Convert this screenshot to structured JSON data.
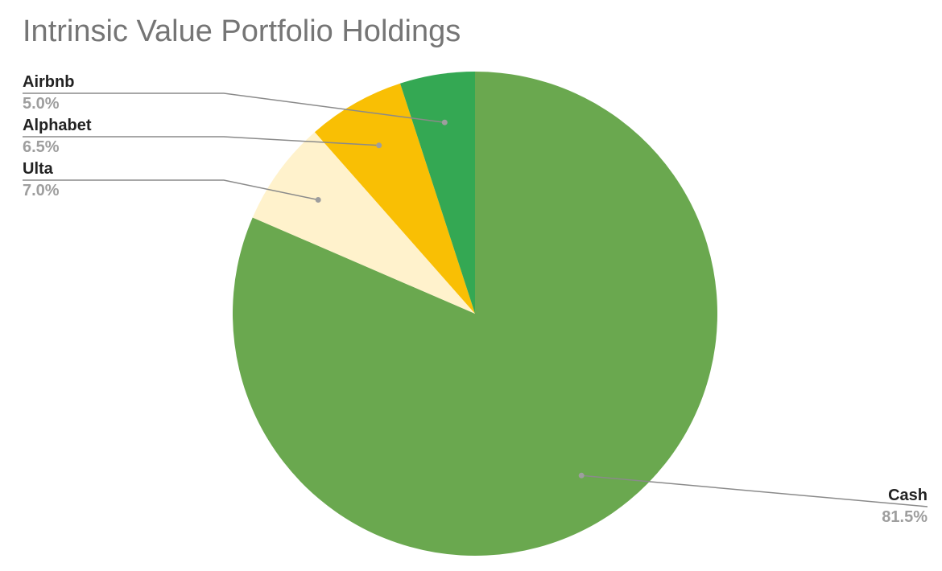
{
  "chart_data": {
    "type": "pie",
    "title": "Intrinsic Value Portfolio Holdings",
    "start_angle_deg": 0,
    "direction": "clockwise",
    "slices": [
      {
        "name": "Cash",
        "value": 81.5,
        "label": "81.5%",
        "color": "#6aa84f"
      },
      {
        "name": "Ulta",
        "value": 7.0,
        "label": "7.0%",
        "color": "#fff2cc"
      },
      {
        "name": "Alphabet",
        "value": 6.5,
        "label": "6.5%",
        "color": "#f9bf04"
      },
      {
        "name": "Airbnb",
        "value": 5.0,
        "label": "5.0%",
        "color": "#34a853"
      }
    ],
    "legend": "none"
  }
}
